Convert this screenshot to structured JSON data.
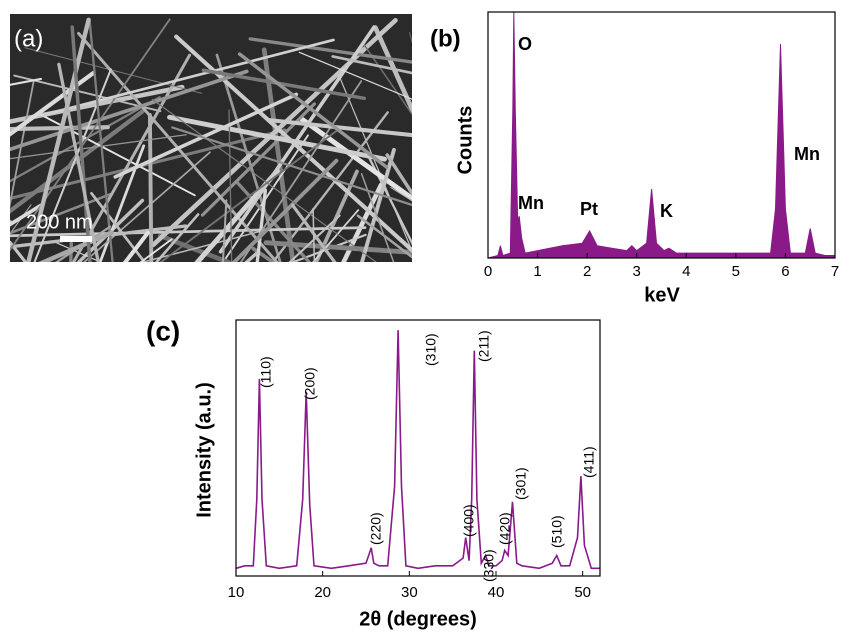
{
  "image_panel": {
    "label": "(a)",
    "scale_bar": "200 nm"
  },
  "chart_data": [
    {
      "type": "area",
      "panel_label": "(b)",
      "y_label": "Counts",
      "x_label": "keV",
      "color": "#8b1a89",
      "xlim": [
        0,
        7
      ],
      "xticks": [
        0,
        1,
        2,
        3,
        4,
        5,
        6,
        7
      ],
      "ylim": [
        0,
        100
      ],
      "x": [
        0,
        0.2,
        0.25,
        0.3,
        0.45,
        0.5,
        0.52,
        0.55,
        0.6,
        0.63,
        0.68,
        0.75,
        1.0,
        1.5,
        1.9,
        2.05,
        2.2,
        2.5,
        2.8,
        2.9,
        3.0,
        3.2,
        3.3,
        3.4,
        3.55,
        3.65,
        3.8,
        4.5,
        5.0,
        5.7,
        5.8,
        5.9,
        6.0,
        6.1,
        6.4,
        6.5,
        6.6,
        6.8,
        7.0
      ],
      "values": [
        0,
        1,
        5,
        1,
        2,
        60,
        100,
        60,
        15,
        17,
        8,
        2,
        3,
        5,
        6,
        11,
        5,
        4,
        3,
        5,
        3,
        6,
        28,
        6,
        3,
        4,
        2,
        2,
        2,
        2,
        20,
        87,
        20,
        2,
        2,
        12,
        2,
        1,
        1
      ],
      "annotations": [
        "O",
        "Mn",
        "Pt",
        "K",
        "Mn"
      ]
    },
    {
      "type": "line",
      "panel_label": "(c)",
      "y_label": "Intensity (a.u.)",
      "x_label": "2θ (degrees)",
      "color": "#8a1a8a",
      "xlim": [
        10,
        52
      ],
      "xticks": [
        10,
        20,
        30,
        40,
        50
      ],
      "ylim": [
        0,
        100
      ],
      "x": [
        10,
        11,
        12,
        12.4,
        12.7,
        13.0,
        13.5,
        15,
        17,
        17.7,
        18.1,
        18.5,
        19,
        21,
        23,
        25,
        25.4,
        25.6,
        25.9,
        26.5,
        27.5,
        28.3,
        28.7,
        29.1,
        29.6,
        31,
        33,
        35,
        36.2,
        36.5,
        36.9,
        37.2,
        37.5,
        37.8,
        38.3,
        38.8,
        39.2,
        40,
        40.7,
        41.0,
        41.4,
        41.9,
        42.4,
        43,
        45,
        46.5,
        47.0,
        47.5,
        48.5,
        49.4,
        49.8,
        50.2,
        51,
        52
      ],
      "values": [
        3,
        4,
        4,
        30,
        77,
        30,
        4,
        3,
        4,
        30,
        72,
        28,
        4,
        3,
        4,
        5,
        9,
        11,
        5,
        4,
        4,
        35,
        96,
        35,
        4,
        3,
        4,
        4,
        7,
        15,
        6,
        30,
        88,
        30,
        5,
        8,
        4,
        4,
        6,
        10,
        8,
        29,
        5,
        4,
        3,
        5,
        8,
        4,
        4,
        15,
        39,
        12,
        3,
        3
      ],
      "annotations": [
        "(110)",
        "(200)",
        "(220)",
        "(310)",
        "(400)",
        "(211)",
        "(330)",
        "(420)",
        "(301)",
        "(510)",
        "(411)"
      ]
    }
  ]
}
